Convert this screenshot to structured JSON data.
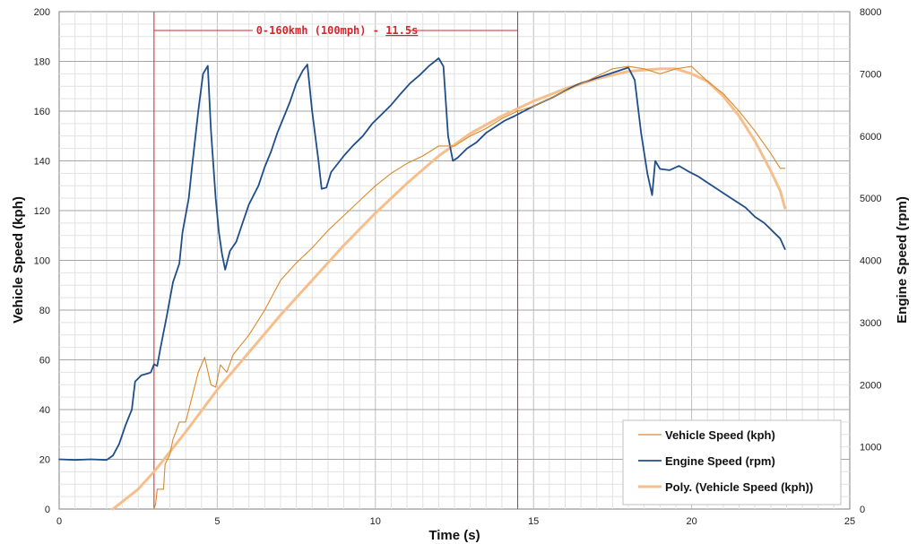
{
  "chart_data": {
    "type": "line",
    "xlabel": "Time (s)",
    "ylabel": "Vehicle Speed (kph)",
    "y2label": "Engine Speed (rpm)",
    "xlim": [
      0,
      25
    ],
    "ylim": [
      0,
      200
    ],
    "y2lim": [
      0,
      8000
    ],
    "xticks": [
      "0",
      "5",
      "10",
      "15",
      "20",
      "25"
    ],
    "yticks": [
      "0",
      "20",
      "40",
      "60",
      "80",
      "100",
      "120",
      "140",
      "160",
      "180",
      "200"
    ],
    "y2ticks": [
      "0",
      "1000",
      "2000",
      "3000",
      "4000",
      "5000",
      "6000",
      "7000",
      "8000"
    ],
    "grid": true,
    "legend_position": "bottom-right",
    "colors": {
      "vehicle": "#d98a2b",
      "engine": "#1f4e8a",
      "poly": "#f6be8a",
      "marker": "#d9252a"
    },
    "annotation": {
      "text": "0-160kmh (100mph) - ",
      "value": "11.5s",
      "x_start": 3.0,
      "x_end": 14.5
    },
    "series": [
      {
        "name": "Vehicle Speed (kph)",
        "axis": "left",
        "points": [
          [
            3.0,
            0
          ],
          [
            3.05,
            2
          ],
          [
            3.1,
            8
          ],
          [
            3.3,
            8
          ],
          [
            3.35,
            18
          ],
          [
            3.5,
            22
          ],
          [
            3.6,
            28
          ],
          [
            3.8,
            35
          ],
          [
            4.0,
            35
          ],
          [
            4.2,
            45
          ],
          [
            4.4,
            55
          ],
          [
            4.6,
            61
          ],
          [
            4.8,
            50
          ],
          [
            4.95,
            49
          ],
          [
            5.1,
            58
          ],
          [
            5.3,
            55
          ],
          [
            5.5,
            62
          ],
          [
            6.0,
            70
          ],
          [
            6.5,
            80
          ],
          [
            7.0,
            92
          ],
          [
            7.5,
            99
          ],
          [
            8.0,
            105
          ],
          [
            8.5,
            112
          ],
          [
            9.0,
            118
          ],
          [
            9.5,
            124
          ],
          [
            10.0,
            130
          ],
          [
            10.5,
            135
          ],
          [
            11.0,
            139
          ],
          [
            11.5,
            142
          ],
          [
            12.0,
            146
          ],
          [
            12.5,
            146
          ],
          [
            13.0,
            150
          ],
          [
            13.5,
            153
          ],
          [
            14.0,
            157
          ],
          [
            14.5,
            160
          ],
          [
            15.0,
            162
          ],
          [
            15.5,
            165
          ],
          [
            16.0,
            168
          ],
          [
            16.5,
            171
          ],
          [
            17.0,
            174
          ],
          [
            17.5,
            177
          ],
          [
            18.0,
            178
          ],
          [
            18.5,
            177
          ],
          [
            19.0,
            175
          ],
          [
            19.5,
            177
          ],
          [
            20.0,
            178
          ],
          [
            20.5,
            172
          ],
          [
            21.0,
            167
          ],
          [
            21.5,
            160
          ],
          [
            22.0,
            152
          ],
          [
            22.5,
            143
          ],
          [
            22.8,
            137
          ],
          [
            22.95,
            137
          ]
        ]
      },
      {
        "name": "Engine Speed (rpm)",
        "axis": "right",
        "points": [
          [
            0,
            800
          ],
          [
            0.5,
            790
          ],
          [
            1.0,
            800
          ],
          [
            1.5,
            790
          ],
          [
            1.7,
            860
          ],
          [
            1.9,
            1050
          ],
          [
            2.1,
            1350
          ],
          [
            2.3,
            1600
          ],
          [
            2.4,
            2050
          ],
          [
            2.6,
            2150
          ],
          [
            2.8,
            2180
          ],
          [
            2.9,
            2200
          ],
          [
            3.0,
            2330
          ],
          [
            3.1,
            2300
          ],
          [
            3.2,
            2580
          ],
          [
            3.4,
            3100
          ],
          [
            3.6,
            3650
          ],
          [
            3.8,
            3950
          ],
          [
            3.9,
            4450
          ],
          [
            4.1,
            5000
          ],
          [
            4.2,
            5500
          ],
          [
            4.4,
            6400
          ],
          [
            4.55,
            7000
          ],
          [
            4.7,
            7130
          ],
          [
            4.8,
            6100
          ],
          [
            4.95,
            5000
          ],
          [
            5.05,
            4450
          ],
          [
            5.15,
            4100
          ],
          [
            5.25,
            3850
          ],
          [
            5.4,
            4150
          ],
          [
            5.6,
            4300
          ],
          [
            5.8,
            4600
          ],
          [
            6.0,
            4900
          ],
          [
            6.3,
            5200
          ],
          [
            6.5,
            5500
          ],
          [
            6.7,
            5750
          ],
          [
            6.9,
            6050
          ],
          [
            7.1,
            6300
          ],
          [
            7.3,
            6550
          ],
          [
            7.5,
            6850
          ],
          [
            7.7,
            7050
          ],
          [
            7.85,
            7150
          ],
          [
            8.0,
            6400
          ],
          [
            8.2,
            5600
          ],
          [
            8.3,
            5150
          ],
          [
            8.45,
            5170
          ],
          [
            8.6,
            5420
          ],
          [
            8.8,
            5550
          ],
          [
            9.0,
            5680
          ],
          [
            9.3,
            5850
          ],
          [
            9.6,
            6000
          ],
          [
            9.9,
            6200
          ],
          [
            10.2,
            6350
          ],
          [
            10.5,
            6500
          ],
          [
            10.8,
            6680
          ],
          [
            11.1,
            6850
          ],
          [
            11.4,
            6980
          ],
          [
            11.7,
            7130
          ],
          [
            12.0,
            7250
          ],
          [
            12.15,
            7120
          ],
          [
            12.3,
            6000
          ],
          [
            12.45,
            5600
          ],
          [
            12.6,
            5650
          ],
          [
            12.9,
            5800
          ],
          [
            13.2,
            5900
          ],
          [
            13.5,
            6050
          ],
          [
            13.8,
            6150
          ],
          [
            14.1,
            6250
          ],
          [
            14.4,
            6320
          ],
          [
            14.7,
            6400
          ],
          [
            15.0,
            6480
          ],
          [
            15.3,
            6550
          ],
          [
            15.6,
            6620
          ],
          [
            15.9,
            6700
          ],
          [
            16.2,
            6780
          ],
          [
            16.5,
            6850
          ],
          [
            16.8,
            6900
          ],
          [
            17.1,
            6950
          ],
          [
            17.4,
            7000
          ],
          [
            17.7,
            7050
          ],
          [
            18.0,
            7100
          ],
          [
            18.2,
            6900
          ],
          [
            18.4,
            6050
          ],
          [
            18.6,
            5400
          ],
          [
            18.75,
            5050
          ],
          [
            18.85,
            5600
          ],
          [
            19.0,
            5470
          ],
          [
            19.3,
            5450
          ],
          [
            19.6,
            5520
          ],
          [
            19.9,
            5430
          ],
          [
            20.2,
            5350
          ],
          [
            20.5,
            5250
          ],
          [
            20.8,
            5150
          ],
          [
            21.1,
            5050
          ],
          [
            21.4,
            4950
          ],
          [
            21.7,
            4850
          ],
          [
            22.0,
            4700
          ],
          [
            22.3,
            4600
          ],
          [
            22.6,
            4450
          ],
          [
            22.8,
            4350
          ],
          [
            22.95,
            4180
          ]
        ]
      },
      {
        "name": "Poly. (Vehicle Speed (kph))",
        "axis": "left",
        "points": [
          [
            1.7,
            0
          ],
          [
            2.0,
            3
          ],
          [
            2.5,
            8
          ],
          [
            3.0,
            15
          ],
          [
            3.5,
            23
          ],
          [
            4.0,
            31
          ],
          [
            5.0,
            48
          ],
          [
            6.0,
            63
          ],
          [
            7.0,
            78
          ],
          [
            8.0,
            92
          ],
          [
            9.0,
            106
          ],
          [
            10.0,
            119
          ],
          [
            11.0,
            131
          ],
          [
            12.0,
            142
          ],
          [
            13.0,
            151
          ],
          [
            14.0,
            158
          ],
          [
            15.0,
            164
          ],
          [
            16.0,
            169
          ],
          [
            17.0,
            173
          ],
          [
            18.0,
            176
          ],
          [
            19.0,
            177
          ],
          [
            19.5,
            177
          ],
          [
            20.0,
            175
          ],
          [
            20.5,
            172
          ],
          [
            21.0,
            166
          ],
          [
            21.5,
            158
          ],
          [
            22.0,
            148
          ],
          [
            22.5,
            136
          ],
          [
            22.8,
            128
          ],
          [
            22.95,
            121
          ]
        ]
      }
    ]
  }
}
